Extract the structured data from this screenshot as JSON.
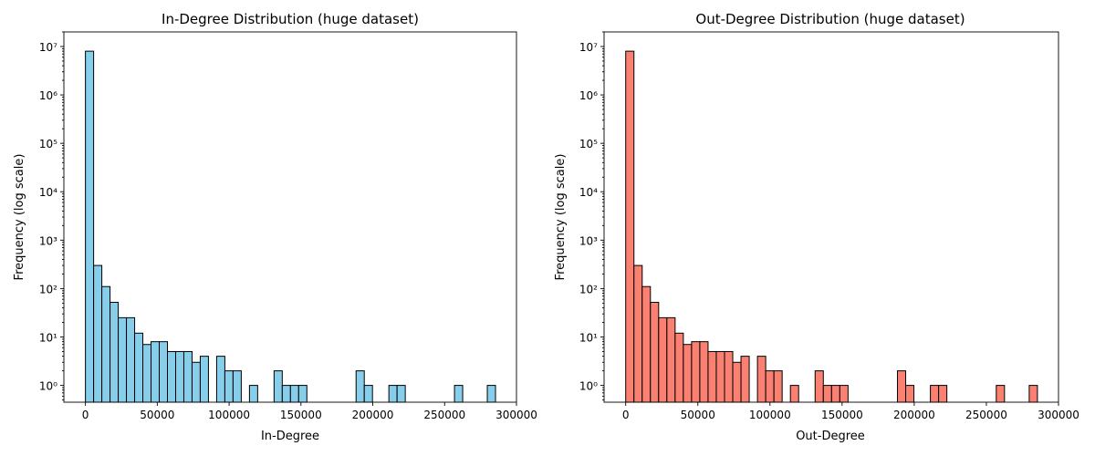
{
  "chart_data": [
    {
      "type": "bar",
      "title": "In-Degree Distribution (huge dataset)",
      "xlabel": "In-Degree",
      "ylabel": "Frequency (log scale)",
      "yscale": "log",
      "xlim": [
        -15000,
        300000
      ],
      "ylim": [
        0.45,
        20000000
      ],
      "bin_width": 5708,
      "x_ticks": [
        0,
        50000,
        100000,
        150000,
        200000,
        250000,
        300000
      ],
      "y_ticks": [
        "10^0",
        "10^1",
        "10^2",
        "10^3",
        "10^4",
        "10^5",
        "10^6",
        "10^7"
      ],
      "color": "#87ceeb",
      "bins": [
        {
          "x": 0,
          "count": 8000000
        },
        {
          "x": 5708,
          "count": 300
        },
        {
          "x": 11416,
          "count": 110
        },
        {
          "x": 17124,
          "count": 52
        },
        {
          "x": 22832,
          "count": 25
        },
        {
          "x": 28540,
          "count": 25
        },
        {
          "x": 34248,
          "count": 12
        },
        {
          "x": 39956,
          "count": 7
        },
        {
          "x": 45664,
          "count": 8
        },
        {
          "x": 51372,
          "count": 8
        },
        {
          "x": 57080,
          "count": 5
        },
        {
          "x": 62788,
          "count": 5
        },
        {
          "x": 68496,
          "count": 5
        },
        {
          "x": 74204,
          "count": 3
        },
        {
          "x": 79912,
          "count": 4
        },
        {
          "x": 91328,
          "count": 4
        },
        {
          "x": 97036,
          "count": 2
        },
        {
          "x": 102744,
          "count": 2
        },
        {
          "x": 114160,
          "count": 1
        },
        {
          "x": 131284,
          "count": 2
        },
        {
          "x": 136992,
          "count": 1
        },
        {
          "x": 142700,
          "count": 1
        },
        {
          "x": 148408,
          "count": 1
        },
        {
          "x": 188364,
          "count": 2
        },
        {
          "x": 194072,
          "count": 1
        },
        {
          "x": 211196,
          "count": 1
        },
        {
          "x": 216904,
          "count": 1
        },
        {
          "x": 256860,
          "count": 1
        },
        {
          "x": 279692,
          "count": 1
        }
      ]
    },
    {
      "type": "bar",
      "title": "Out-Degree Distribution (huge dataset)",
      "xlabel": "Out-Degree",
      "ylabel": "Frequency (log scale)",
      "yscale": "log",
      "xlim": [
        -15000,
        300000
      ],
      "ylim": [
        0.45,
        20000000
      ],
      "bin_width": 5708,
      "x_ticks": [
        0,
        50000,
        100000,
        150000,
        200000,
        250000,
        300000
      ],
      "y_ticks": [
        "10^0",
        "10^1",
        "10^2",
        "10^3",
        "10^4",
        "10^5",
        "10^6",
        "10^7"
      ],
      "color": "#fa8072",
      "bins": [
        {
          "x": 0,
          "count": 8000000
        },
        {
          "x": 5708,
          "count": 300
        },
        {
          "x": 11416,
          "count": 110
        },
        {
          "x": 17124,
          "count": 52
        },
        {
          "x": 22832,
          "count": 25
        },
        {
          "x": 28540,
          "count": 25
        },
        {
          "x": 34248,
          "count": 12
        },
        {
          "x": 39956,
          "count": 7
        },
        {
          "x": 45664,
          "count": 8
        },
        {
          "x": 51372,
          "count": 8
        },
        {
          "x": 57080,
          "count": 5
        },
        {
          "x": 62788,
          "count": 5
        },
        {
          "x": 68496,
          "count": 5
        },
        {
          "x": 74204,
          "count": 3
        },
        {
          "x": 79912,
          "count": 4
        },
        {
          "x": 91328,
          "count": 4
        },
        {
          "x": 97036,
          "count": 2
        },
        {
          "x": 102744,
          "count": 2
        },
        {
          "x": 114160,
          "count": 1
        },
        {
          "x": 131284,
          "count": 2
        },
        {
          "x": 136992,
          "count": 1
        },
        {
          "x": 142700,
          "count": 1
        },
        {
          "x": 148408,
          "count": 1
        },
        {
          "x": 188364,
          "count": 2
        },
        {
          "x": 194072,
          "count": 1
        },
        {
          "x": 211196,
          "count": 1
        },
        {
          "x": 216904,
          "count": 1
        },
        {
          "x": 256860,
          "count": 1
        },
        {
          "x": 279692,
          "count": 1
        }
      ]
    }
  ]
}
